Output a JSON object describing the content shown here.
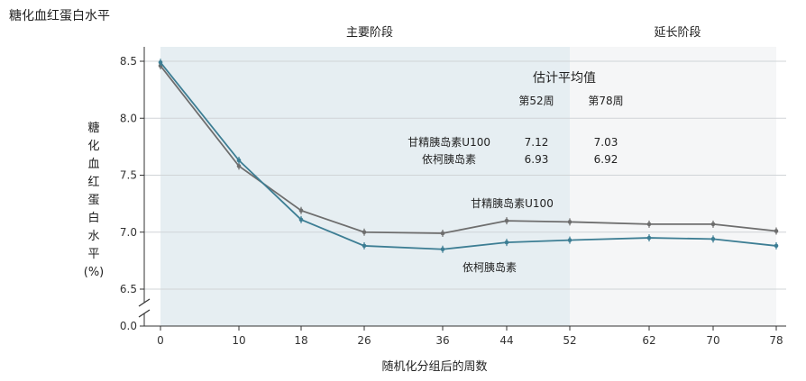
{
  "chart_data": {
    "type": "line",
    "title": "糖化血红蛋白水平",
    "xlabel": "随机化分组后的周数",
    "ylabel": [
      "糖",
      "化",
      "血",
      "红",
      "蛋",
      "白",
      "水",
      "平",
      "(%)"
    ],
    "x": [
      0,
      10,
      18,
      26,
      36,
      44,
      52,
      62,
      70,
      78
    ],
    "x_ticks": [
      "0",
      "10",
      "18",
      "26",
      "36",
      "44",
      "52",
      "62",
      "70",
      "78"
    ],
    "y_ticks": [
      "0.0",
      "6.5",
      "7.0",
      "7.5",
      "8.0",
      "8.5"
    ],
    "ylim": [
      6.5,
      8.5
    ],
    "y_axis_break": true,
    "grid": "horizontal",
    "phases": [
      {
        "label": "主要阶段",
        "from": 0,
        "to": 52,
        "color": "#e6eef2"
      },
      {
        "label": "延长阶段",
        "from": 52,
        "to": 78,
        "color": "#f5f6f7"
      }
    ],
    "series": [
      {
        "name": "甘精胰岛素U100",
        "color": "#6e6e6e",
        "values": [
          8.46,
          7.58,
          7.19,
          7.0,
          6.99,
          7.1,
          7.09,
          7.07,
          7.07,
          7.01
        ]
      },
      {
        "name": "依柯胰岛素",
        "color": "#3d7e94",
        "values": [
          8.49,
          7.63,
          7.11,
          6.88,
          6.85,
          6.91,
          6.93,
          6.95,
          6.94,
          6.88
        ]
      }
    ],
    "annotation": {
      "title": "估计平均值",
      "columns": [
        "第52周",
        "第78周"
      ],
      "rows": [
        {
          "label": "甘精胰岛素U100",
          "values": [
            "7.12",
            "7.03"
          ]
        },
        {
          "label": "依柯胰岛素",
          "values": [
            "6.93",
            "6.92"
          ]
        }
      ]
    }
  }
}
